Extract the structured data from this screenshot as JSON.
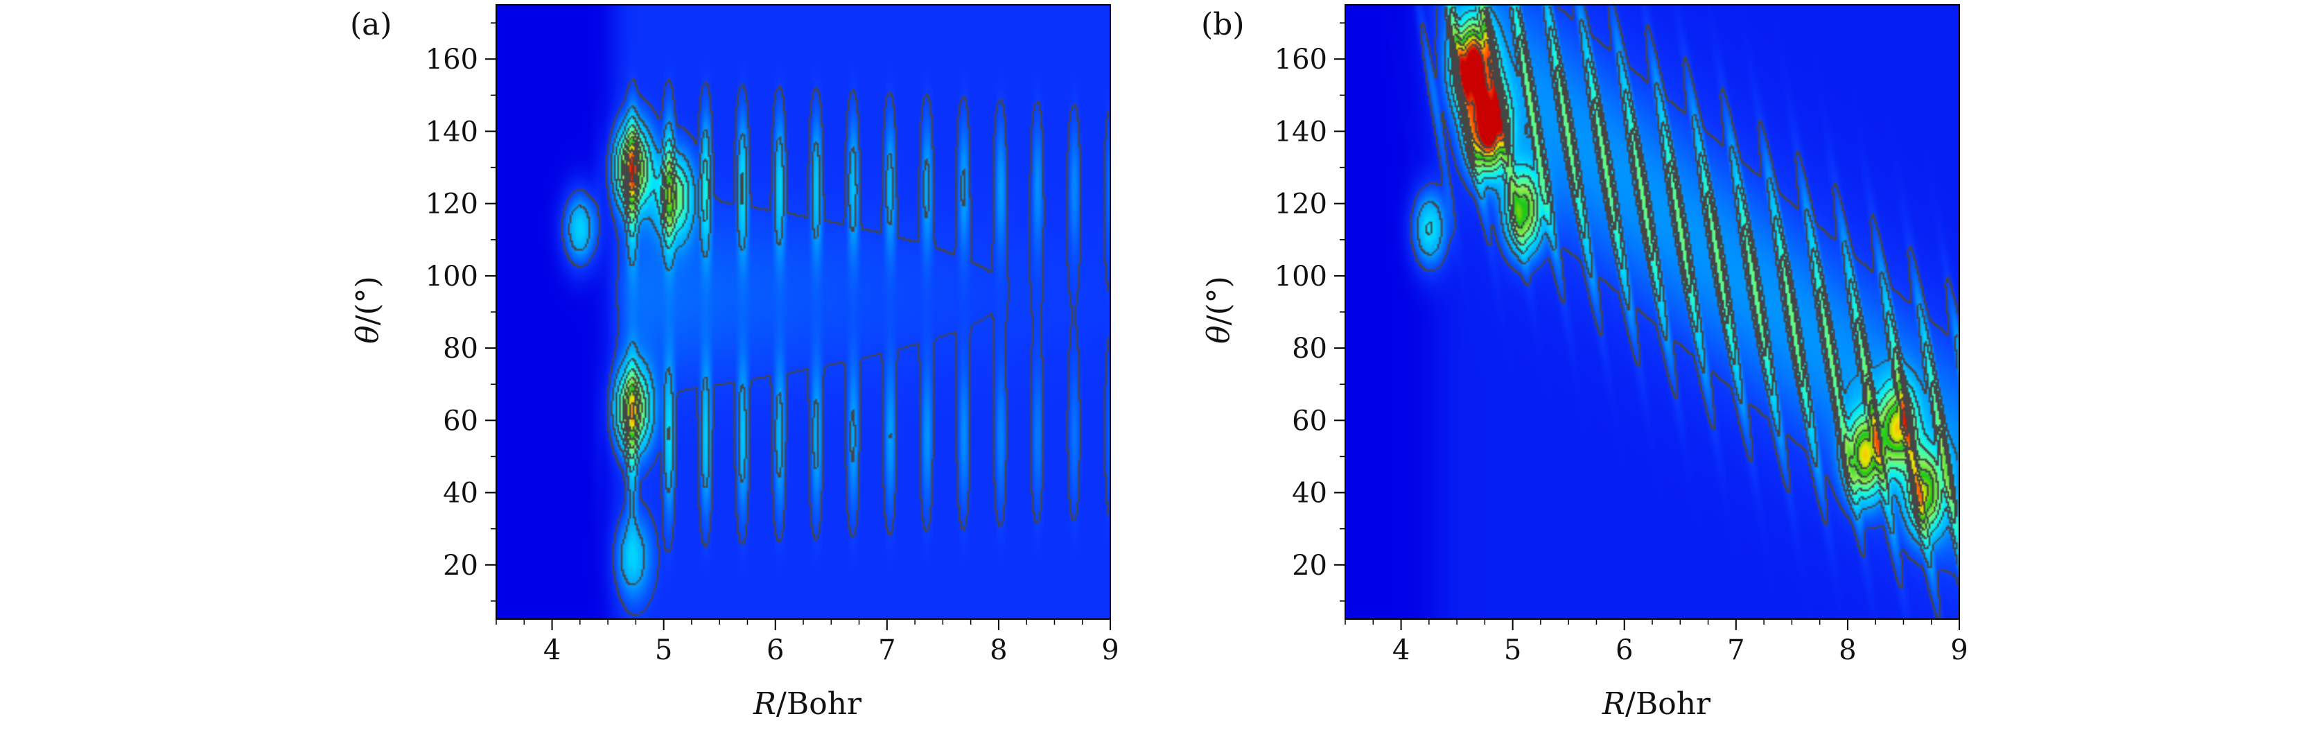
{
  "chart_data": [
    {
      "type": "heatmap",
      "panel_label": "(a)",
      "xlabel_var": "R",
      "xlabel_unit": "/Bohr",
      "ylabel_var": "θ",
      "ylabel_unit": "/(°)",
      "xlim": [
        3.5,
        9.0
      ],
      "ylim": [
        5,
        175
      ],
      "xticks": [
        "4",
        "5",
        "6",
        "7",
        "8",
        "9"
      ],
      "xtick_values": [
        4,
        5,
        6,
        7,
        8,
        9
      ],
      "yticks": [
        "20",
        "40",
        "60",
        "80",
        "100",
        "120",
        "140",
        "160"
      ],
      "ytick_values": [
        20,
        40,
        60,
        80,
        100,
        120,
        140,
        160
      ],
      "colormap": [
        "#0000e6",
        "#0a37ff",
        "#00a0ff",
        "#00e6ff",
        "#40ffb0",
        "#8cf050",
        "#19c819",
        "#f0e600",
        "#ff5000",
        "#c80000"
      ],
      "contours": true,
      "peaks": [
        {
          "r": 4.72,
          "theta": 130,
          "level": 0.62
        },
        {
          "r": 4.72,
          "theta": 63,
          "level": 0.55
        },
        {
          "r": 4.25,
          "theta": 113,
          "level": 0.3
        },
        {
          "r": 5.1,
          "theta": 122,
          "level": 0.4
        },
        {
          "r": 4.72,
          "theta": 22,
          "level": 0.2
        }
      ]
    },
    {
      "type": "heatmap",
      "panel_label": "(b)",
      "xlabel_var": "R",
      "xlabel_unit": "/Bohr",
      "ylabel_var": "θ",
      "ylabel_unit": "/(°)",
      "xlim": [
        3.5,
        9.0
      ],
      "ylim": [
        5,
        175
      ],
      "xticks": [
        "4",
        "5",
        "6",
        "7",
        "8",
        "9"
      ],
      "xtick_values": [
        4,
        5,
        6,
        7,
        8,
        9
      ],
      "yticks": [
        "20",
        "40",
        "60",
        "80",
        "100",
        "120",
        "140",
        "160"
      ],
      "ytick_values": [
        20,
        40,
        60,
        80,
        100,
        120,
        140,
        160
      ],
      "colormap": [
        "#0000e6",
        "#0a37ff",
        "#00a0ff",
        "#00e6ff",
        "#40ffb0",
        "#8cf050",
        "#19c819",
        "#f0e600",
        "#ff5000",
        "#c80000"
      ],
      "contours": true,
      "peaks": [
        {
          "r": 4.65,
          "theta": 158,
          "level": 0.92
        },
        {
          "r": 4.78,
          "theta": 141,
          "level": 1.0
        },
        {
          "r": 5.1,
          "theta": 118,
          "level": 0.55
        },
        {
          "r": 8.15,
          "theta": 50,
          "level": 0.62
        },
        {
          "r": 8.45,
          "theta": 58,
          "level": 0.58
        },
        {
          "r": 8.7,
          "theta": 40,
          "level": 0.55
        },
        {
          "r": 4.25,
          "theta": 113,
          "level": 0.3
        }
      ]
    }
  ]
}
